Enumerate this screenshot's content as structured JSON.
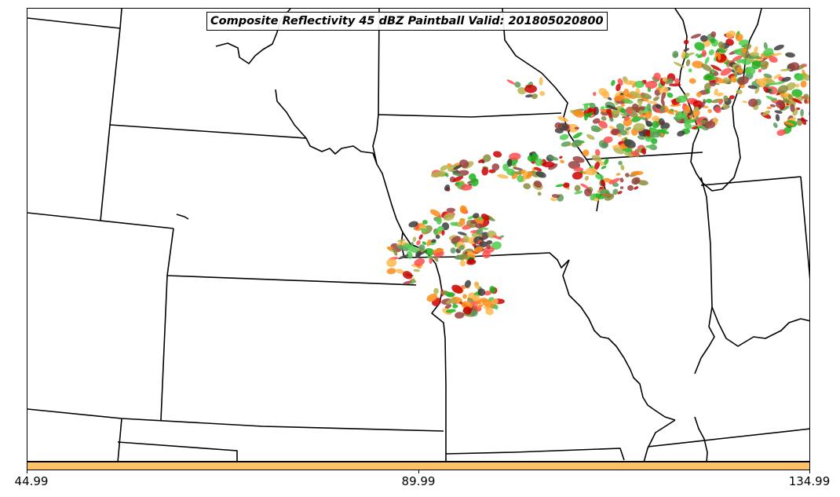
{
  "title": "Composite Reflectivity 45 dBZ Paintball Valid: 201805020800",
  "colorbar": {
    "color": "#ffc266",
    "ticks": [
      "44.99",
      "89.99",
      "134.99"
    ]
  },
  "member_colors": [
    "#ff4d4d",
    "#ff8c1a",
    "#ffb84d",
    "#b3b34d",
    "#8c8c3d",
    "#4dcc4d",
    "#1fb31f",
    "#5c9c5c",
    "#994040",
    "#cc0000",
    "#3d3d3d"
  ]
}
